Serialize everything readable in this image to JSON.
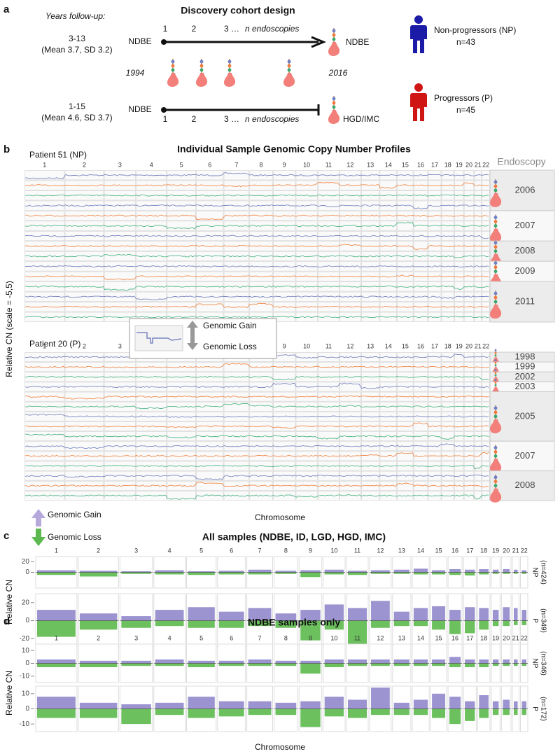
{
  "panels": {
    "a": {
      "label": "a",
      "title": "Discovery cohort design",
      "followup_heading": "Years follow-up:",
      "start_year": "1994",
      "end_year": "2016",
      "rows": [
        {
          "years": "3-13",
          "stats": "(Mean 3.7, SD 3.2)",
          "start": "NDBE",
          "steps": [
            "1",
            "2",
            "3 …"
          ],
          "steps_italic": "n endoscopies",
          "end": "NDBE",
          "group": "Non-progressors (NP)",
          "n": "n=43",
          "color": "#1b1ba8"
        },
        {
          "years": "1-15",
          "stats": "(Mean 4.6, SD 3.7)",
          "start": "NDBE",
          "steps": [
            "1",
            "2",
            "3 …"
          ],
          "steps_italic": "n endoscopies",
          "end": "HGD/IMC",
          "group": "Progressors (P)",
          "n": "n=45",
          "color": "#d01515"
        }
      ]
    },
    "b": {
      "label": "b",
      "title": "Individual Sample Genomic Copy Number Profiles",
      "endoscopy_heading": "Endoscopy",
      "ylabel": "Relative CN (scale = -5,5)",
      "xlabel": "Chromosome",
      "chromosomes": [
        "1",
        "2",
        "3",
        "4",
        "5",
        "6",
        "7",
        "8",
        "9",
        "10",
        "11",
        "12",
        "13",
        "14",
        "15",
        "16",
        "17",
        "18",
        "19",
        "20",
        "21",
        "22"
      ],
      "sample_colors": [
        "#7b86c0",
        "#f08a4b",
        "#52b788"
      ],
      "patients": [
        {
          "name": "Patient 51 (NP)",
          "years": [
            "2006",
            "2007",
            "2008",
            "2009",
            "2011"
          ]
        },
        {
          "name": "Patient 20 (P)",
          "years": [
            "1998",
            "1999",
            "2002",
            "2003",
            "2005",
            "2007",
            "2008"
          ]
        }
      ],
      "inset": {
        "gain": "Genomic Gain",
        "loss": "Genomic Loss"
      },
      "legend": {
        "gain": "Genomic Gain",
        "loss": "Genomic Loss"
      }
    }
  },
  "chart_data": [
    {
      "type": "bar",
      "label": "c",
      "title": "All samples (NDBE, ID, LGD, HGD, IMC)",
      "ylabel": "Relative CN",
      "gain_color": "#9b94d0",
      "loss_color": "#6cc05e",
      "categories": [
        "1",
        "2",
        "3",
        "4",
        "5",
        "6",
        "7",
        "8",
        "9",
        "10",
        "11",
        "12",
        "13",
        "14",
        "15",
        "16",
        "17",
        "18",
        "19",
        "20",
        "21",
        "22"
      ],
      "rows": [
        {
          "name": "NP",
          "n": "(n=424)",
          "ylim": [
            -30,
            30
          ],
          "yticks": [
            0,
            20
          ],
          "gain": [
            4,
            3,
            2,
            4,
            2,
            3,
            5,
            3,
            4,
            5,
            3,
            4,
            5,
            7,
            4,
            6,
            5,
            6,
            5,
            6,
            5,
            4
          ],
          "loss": [
            -5,
            -8,
            -3,
            -4,
            -5,
            -4,
            -4,
            -3,
            -9,
            -4,
            -5,
            -3,
            -3,
            -4,
            -4,
            -5,
            -6,
            -4,
            -3,
            -3,
            -3,
            -3
          ]
        },
        {
          "name": "P",
          "n": "(n=349)",
          "ylim": [
            -30,
            30
          ],
          "yticks": [
            -20,
            0,
            20
          ],
          "gain": [
            12,
            8,
            5,
            12,
            15,
            10,
            14,
            8,
            12,
            18,
            14,
            22,
            10,
            14,
            16,
            12,
            15,
            14,
            12,
            15,
            14,
            12
          ],
          "loss": [
            -18,
            -10,
            -8,
            -6,
            -8,
            -8,
            -6,
            -8,
            -22,
            -10,
            -26,
            -8,
            -6,
            -6,
            -10,
            -15,
            -14,
            -10,
            -6,
            -6,
            -5,
            -5
          ]
        }
      ]
    },
    {
      "type": "bar",
      "label": "d",
      "title": "NDBE samples only",
      "ylabel": "Relative CN",
      "xlabel": "Chromosome",
      "gain_color": "#9b94d0",
      "loss_color": "#6cc05e",
      "categories": [
        "1",
        "2",
        "3",
        "4",
        "5",
        "6",
        "7",
        "8",
        "9",
        "10",
        "11",
        "12",
        "13",
        "14",
        "15",
        "16",
        "17",
        "18",
        "19",
        "20",
        "21",
        "22"
      ],
      "rows": [
        {
          "name": "NP",
          "n": "(n=346)",
          "ylim": [
            -15,
            15
          ],
          "yticks": [
            -10,
            0,
            10
          ],
          "gain": [
            3,
            2,
            2,
            3,
            2,
            2,
            3,
            2,
            2,
            3,
            3,
            3,
            3,
            3,
            3,
            5,
            3,
            3,
            3,
            3,
            3,
            3
          ],
          "loss": [
            -3,
            -3,
            -2,
            -2,
            -3,
            -2,
            -2,
            -2,
            -8,
            -3,
            -2,
            -2,
            -2,
            -2,
            -2,
            -3,
            -3,
            -3,
            -2,
            -2,
            -2,
            -2
          ]
        },
        {
          "name": "P",
          "n": "(n=172)",
          "ylim": [
            -15,
            15
          ],
          "yticks": [
            -10,
            0,
            10
          ],
          "gain": [
            8,
            4,
            3,
            4,
            8,
            5,
            5,
            4,
            5,
            8,
            6,
            14,
            4,
            6,
            10,
            8,
            5,
            9,
            5,
            6,
            5,
            5
          ],
          "loss": [
            -6,
            -6,
            -10,
            -4,
            -6,
            -5,
            -4,
            -4,
            -12,
            -5,
            -6,
            -4,
            -4,
            -4,
            -6,
            -10,
            -8,
            -6,
            -4,
            -4,
            -4,
            -4
          ]
        }
      ]
    }
  ]
}
